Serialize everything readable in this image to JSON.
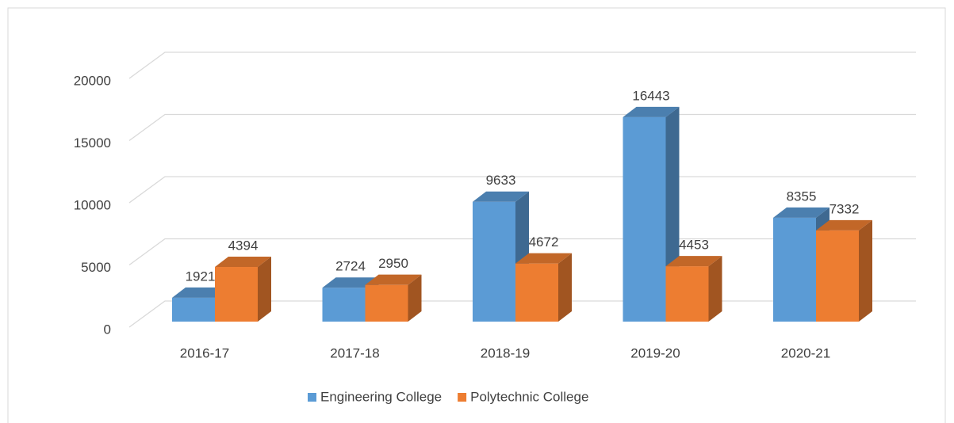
{
  "chart_data": {
    "type": "bar3d",
    "categories": [
      "2016-17",
      "2017-18",
      "2018-19",
      "2019-20",
      "2020-21"
    ],
    "series": [
      {
        "name": "Engineering College",
        "color": "#5b9bd5",
        "values": [
          1921,
          2724,
          9633,
          16443,
          8355
        ]
      },
      {
        "name": "Polytechnic College",
        "color": "#ed7d31",
        "values": [
          4394,
          2950,
          4672,
          4453,
          7332
        ]
      }
    ],
    "ylim": [
      0,
      20000
    ],
    "yticks": [
      0,
      5000,
      10000,
      15000,
      20000
    ],
    "grid": true,
    "legend": "bottom"
  }
}
